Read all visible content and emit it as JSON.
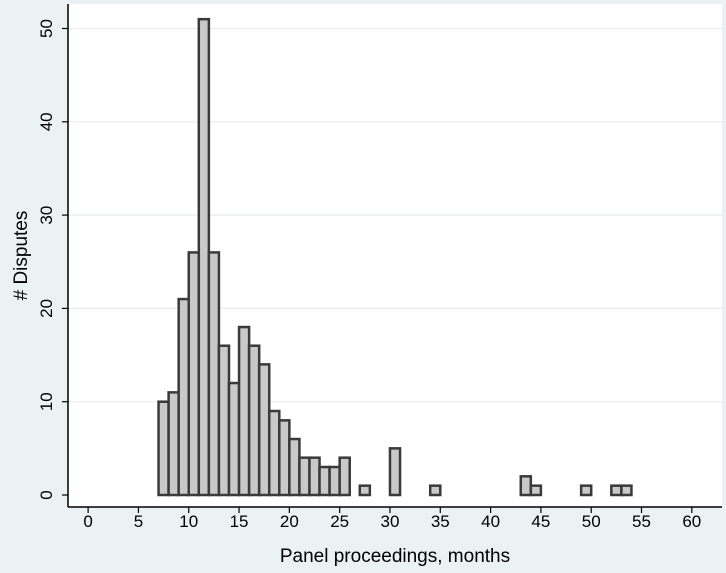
{
  "chart_data": {
    "type": "bar",
    "title": "",
    "xlabel": "Panel proceedings, months",
    "ylabel": "# Disputes",
    "xlim": [
      -2,
      63
    ],
    "ylim": [
      0,
      51.5
    ],
    "bin_width": 1,
    "x_ticks": [
      0,
      5,
      10,
      15,
      20,
      25,
      30,
      35,
      40,
      45,
      50,
      55,
      60
    ],
    "y_ticks": [
      0,
      10,
      20,
      30,
      40,
      50
    ],
    "grid": true,
    "legend": "none",
    "colors": {
      "background": "#eaf2f3",
      "plot_area": "#ffffff",
      "bar_fill": "#c9c9c9",
      "bar_stroke": "#3a3a3a",
      "grid": "#e6eeee"
    },
    "bins": [
      {
        "x": 7,
        "value": 10
      },
      {
        "x": 8,
        "value": 11
      },
      {
        "x": 9,
        "value": 21
      },
      {
        "x": 10,
        "value": 26
      },
      {
        "x": 11,
        "value": 51
      },
      {
        "x": 12,
        "value": 26
      },
      {
        "x": 13,
        "value": 16
      },
      {
        "x": 14,
        "value": 12
      },
      {
        "x": 15,
        "value": 18
      },
      {
        "x": 16,
        "value": 16
      },
      {
        "x": 17,
        "value": 14
      },
      {
        "x": 18,
        "value": 9
      },
      {
        "x": 19,
        "value": 8
      },
      {
        "x": 20,
        "value": 6
      },
      {
        "x": 21,
        "value": 4
      },
      {
        "x": 22,
        "value": 4
      },
      {
        "x": 23,
        "value": 3
      },
      {
        "x": 24,
        "value": 3
      },
      {
        "x": 25,
        "value": 4
      },
      {
        "x": 27,
        "value": 1
      },
      {
        "x": 30,
        "value": 5
      },
      {
        "x": 34,
        "value": 1
      },
      {
        "x": 43,
        "value": 2
      },
      {
        "x": 44,
        "value": 1
      },
      {
        "x": 49,
        "value": 1
      },
      {
        "x": 52,
        "value": 1
      },
      {
        "x": 53,
        "value": 1
      }
    ]
  }
}
